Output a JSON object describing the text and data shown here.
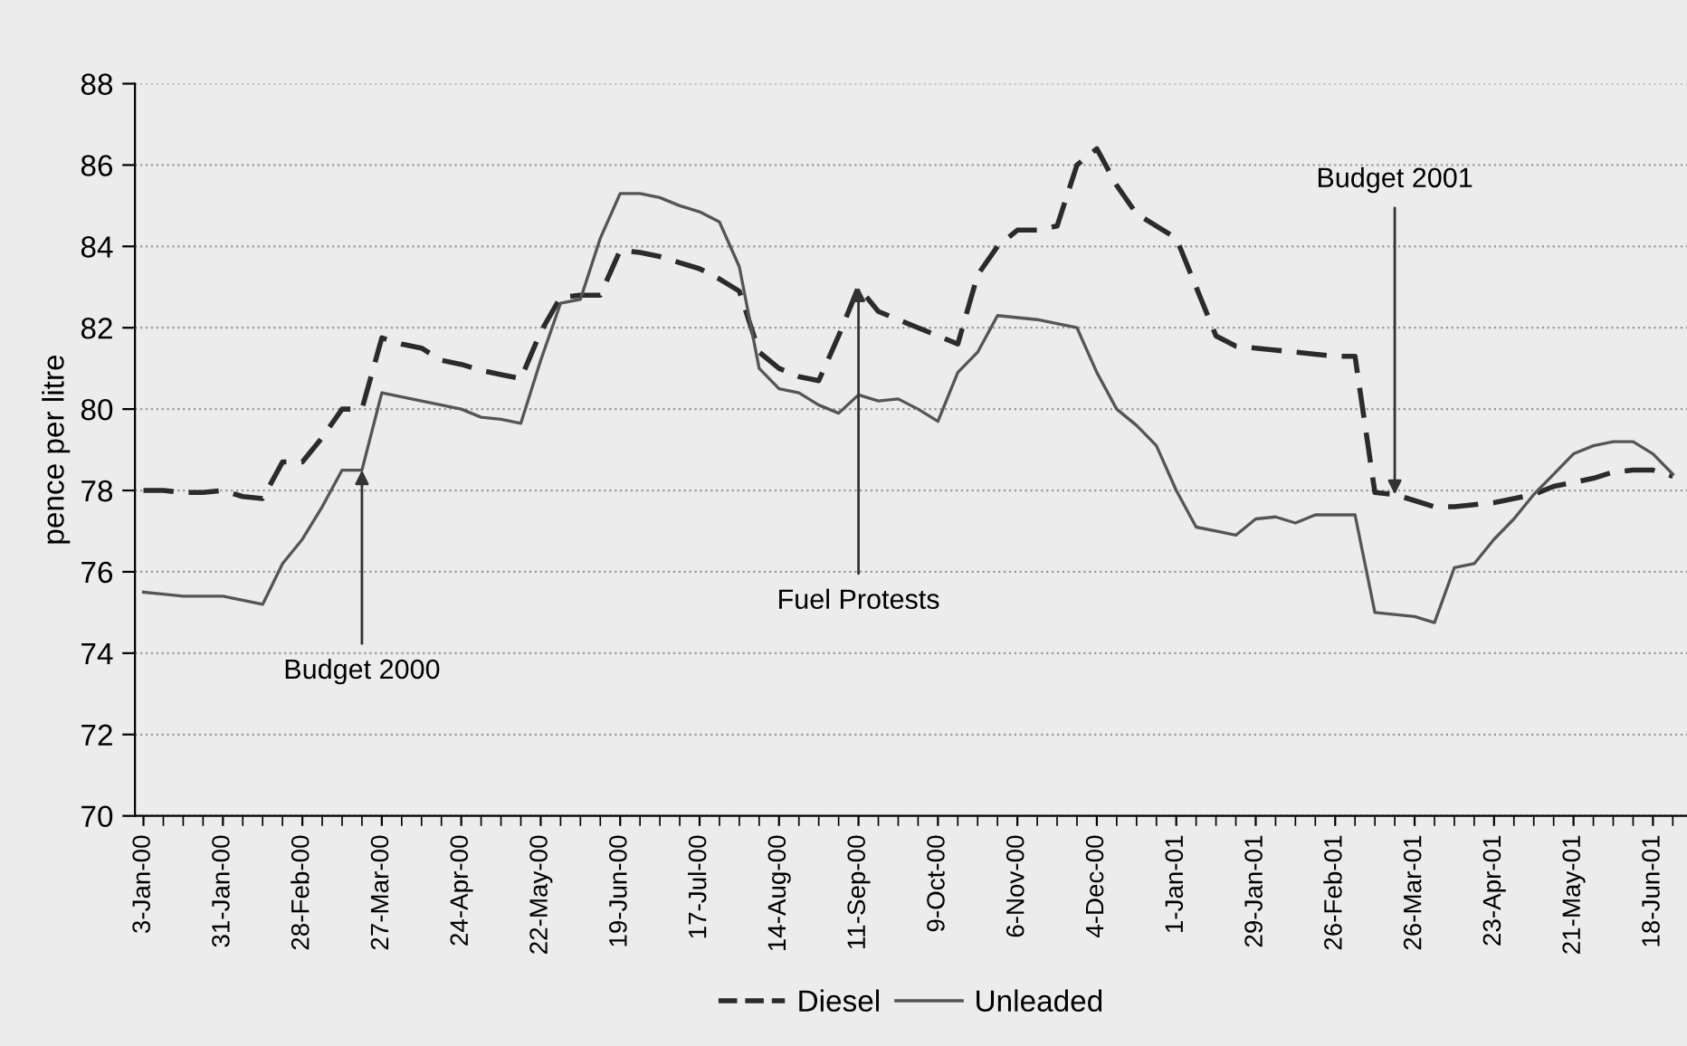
{
  "chart_data": {
    "type": "line",
    "ylabel": "pence per litre",
    "x": [
      "2000-01-03",
      "2000-01-10",
      "2000-01-17",
      "2000-01-24",
      "2000-01-31",
      "2000-02-07",
      "2000-02-14",
      "2000-02-21",
      "2000-02-28",
      "2000-03-06",
      "2000-03-13",
      "2000-03-20",
      "2000-03-27",
      "2000-04-03",
      "2000-04-10",
      "2000-04-17",
      "2000-04-24",
      "2000-05-01",
      "2000-05-08",
      "2000-05-15",
      "2000-05-22",
      "2000-05-29",
      "2000-06-05",
      "2000-06-12",
      "2000-06-19",
      "2000-06-26",
      "2000-07-03",
      "2000-07-10",
      "2000-07-17",
      "2000-07-24",
      "2000-07-31",
      "2000-08-07",
      "2000-08-14",
      "2000-08-21",
      "2000-08-28",
      "2000-09-04",
      "2000-09-11",
      "2000-09-18",
      "2000-09-25",
      "2000-10-02",
      "2000-10-09",
      "2000-10-16",
      "2000-10-23",
      "2000-10-30",
      "2000-11-06",
      "2000-11-13",
      "2000-11-20",
      "2000-11-27",
      "2000-12-04",
      "2000-12-11",
      "2000-12-18",
      "2000-12-25",
      "2001-01-01",
      "2001-01-08",
      "2001-01-15",
      "2001-01-22",
      "2001-01-29",
      "2001-02-05",
      "2001-02-12",
      "2001-02-19",
      "2001-02-26",
      "2001-03-05",
      "2001-03-12",
      "2001-03-19",
      "2001-03-26",
      "2001-04-02",
      "2001-04-09",
      "2001-04-16",
      "2001-04-23",
      "2001-04-30",
      "2001-05-07",
      "2001-05-14",
      "2001-05-21",
      "2001-05-28",
      "2001-06-04",
      "2001-06-11",
      "2001-06-18",
      "2001-06-25"
    ],
    "series": [
      {
        "name": "Diesel",
        "color": "#2b2b2b",
        "line_style": "dashed",
        "values": [
          78.0,
          78.0,
          77.95,
          77.95,
          78.0,
          77.85,
          77.8,
          78.7,
          78.7,
          79.3,
          80.0,
          80.0,
          81.75,
          81.6,
          81.5,
          81.2,
          81.1,
          80.95,
          80.85,
          80.75,
          81.9,
          82.75,
          82.8,
          82.8,
          83.9,
          83.85,
          83.75,
          83.6,
          83.45,
          83.2,
          82.9,
          81.4,
          81.0,
          80.8,
          80.7,
          81.8,
          83.0,
          82.4,
          82.2,
          82.0,
          81.8,
          81.6,
          83.3,
          84.0,
          84.4,
          84.4,
          84.5,
          86.0,
          86.4,
          85.5,
          84.8,
          84.5,
          84.2,
          83.0,
          81.8,
          81.55,
          81.5,
          81.45,
          81.4,
          81.35,
          81.3,
          81.3,
          77.95,
          77.9,
          77.75,
          77.6,
          77.6,
          77.65,
          77.7,
          77.8,
          77.9,
          78.1,
          78.2,
          78.3,
          78.45,
          78.5,
          78.5,
          78.35
        ]
      },
      {
        "name": "Unleaded",
        "color": "#555555",
        "line_style": "solid",
        "values": [
          75.5,
          75.45,
          75.4,
          75.4,
          75.4,
          75.3,
          75.2,
          76.2,
          76.8,
          77.6,
          78.5,
          78.5,
          80.4,
          80.3,
          80.2,
          80.1,
          80.0,
          79.8,
          79.75,
          79.65,
          81.2,
          82.6,
          82.7,
          84.2,
          85.3,
          85.3,
          85.2,
          85.0,
          84.85,
          84.6,
          83.5,
          81.0,
          80.5,
          80.4,
          80.1,
          79.9,
          80.35,
          80.2,
          80.25,
          80.0,
          79.7,
          80.9,
          81.4,
          82.3,
          82.25,
          82.2,
          82.1,
          82.0,
          80.9,
          80.0,
          79.6,
          79.1,
          78.0,
          77.1,
          77.0,
          76.9,
          77.3,
          77.35,
          77.2,
          77.4,
          77.4,
          77.4,
          75.0,
          74.95,
          74.9,
          74.75,
          76.1,
          76.2,
          76.8,
          77.3,
          77.9,
          78.4,
          78.9,
          79.1,
          79.2,
          79.2,
          78.9,
          78.4
        ]
      }
    ],
    "xlim": [
      "1999-12-31",
      "2001-06-30"
    ],
    "xticks": [
      {
        "value": "2000-01-03",
        "label": "3-Jan-00"
      },
      {
        "value": "2000-01-31",
        "label": "31-Jan-00"
      },
      {
        "value": "2000-02-28",
        "label": "28-Feb-00"
      },
      {
        "value": "2000-03-27",
        "label": "27-Mar-00"
      },
      {
        "value": "2000-04-24",
        "label": "24-Apr-00"
      },
      {
        "value": "2000-05-22",
        "label": "22-May-00"
      },
      {
        "value": "2000-06-19",
        "label": "19-Jun-00"
      },
      {
        "value": "2000-07-17",
        "label": "17-Jul-00"
      },
      {
        "value": "2000-08-14",
        "label": "14-Aug-00"
      },
      {
        "value": "2000-09-11",
        "label": "11-Sep-00"
      },
      {
        "value": "2000-10-09",
        "label": "9-Oct-00"
      },
      {
        "value": "2000-11-06",
        "label": "6-Nov-00"
      },
      {
        "value": "2000-12-04",
        "label": "4-Dec-00"
      },
      {
        "value": "2001-01-01",
        "label": "1-Jan-01"
      },
      {
        "value": "2001-01-29",
        "label": "29-Jan-01"
      },
      {
        "value": "2001-02-26",
        "label": "26-Feb-01"
      },
      {
        "value": "2001-03-26",
        "label": "26-Mar-01"
      },
      {
        "value": "2001-04-23",
        "label": "23-Apr-01"
      },
      {
        "value": "2001-05-21",
        "label": "21-May-01"
      },
      {
        "value": "2001-06-18",
        "label": "18-Jun-01"
      }
    ],
    "ylim": [
      70,
      88
    ],
    "yticks": [
      70,
      72,
      74,
      76,
      78,
      80,
      82,
      84,
      86,
      88
    ],
    "grid": "y",
    "legend": "bottom",
    "marker": "none",
    "annotations": [
      {
        "text": "Budget 2000",
        "x": "2000-03-20",
        "y": 78.5
      },
      {
        "text": "Fuel Protests",
        "x": "2000-09-11",
        "y": 83.0
      },
      {
        "text": "Budget 2001",
        "x": "2001-03-19",
        "y": 77.9
      }
    ]
  }
}
